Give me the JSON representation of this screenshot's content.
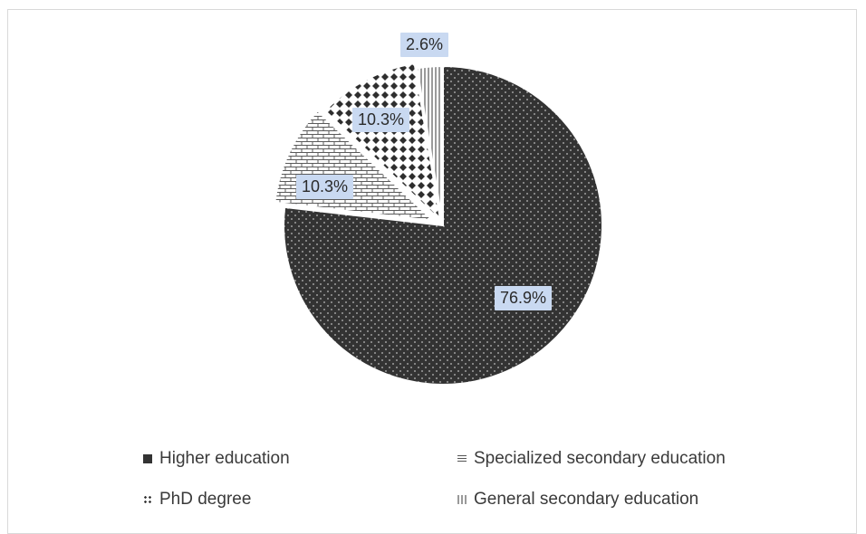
{
  "chart_data": {
    "type": "pie",
    "categories": [
      "Higher education",
      "Specialized secondary education",
      "PhD degree",
      "General secondary education"
    ],
    "values": [
      76.9,
      10.3,
      10.3,
      2.6
    ],
    "data_labels": [
      "76.9%",
      "10.3%",
      "10.3%",
      "2.6%"
    ],
    "legend_placement": "bottom",
    "colors": {
      "higher": "#333333",
      "specialized": "#ffffff",
      "phd": "#ffffff",
      "general": "#bfbfbf",
      "label_bg": "#c9d9f1",
      "pattern_ink": "#2e2e2e"
    }
  }
}
